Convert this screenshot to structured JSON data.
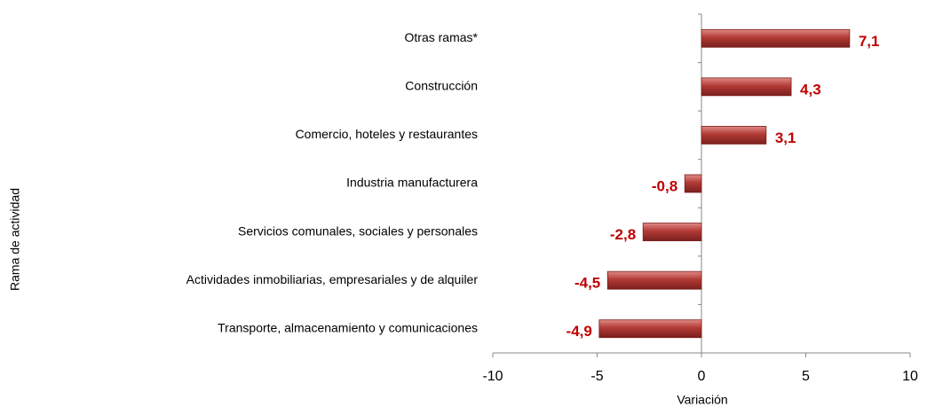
{
  "chart_data": {
    "type": "barh",
    "categories": [
      "Otras ramas*",
      "Construcción",
      "Comercio, hoteles y restaurantes",
      "Industria manufacturera",
      "Servicios comunales, sociales y personales",
      "Actividades inmobiliarias, empresariales y de alquiler",
      "Transporte, almacenamiento y comunicaciones"
    ],
    "values": [
      7.1,
      4.3,
      3.1,
      -0.8,
      -2.8,
      -4.5,
      -4.9
    ],
    "value_labels": [
      "7,1",
      "4,3",
      "3,1",
      "-0,8",
      "-2,8",
      "-4,5",
      "-4,9"
    ],
    "color": "#b23a36",
    "label_color": "#c00000",
    "xlim": [
      -10,
      10
    ],
    "xticks": [
      -10,
      -5,
      0,
      5,
      10
    ],
    "xlabel": "Variación",
    "ylabel": "Rama de actividad"
  }
}
